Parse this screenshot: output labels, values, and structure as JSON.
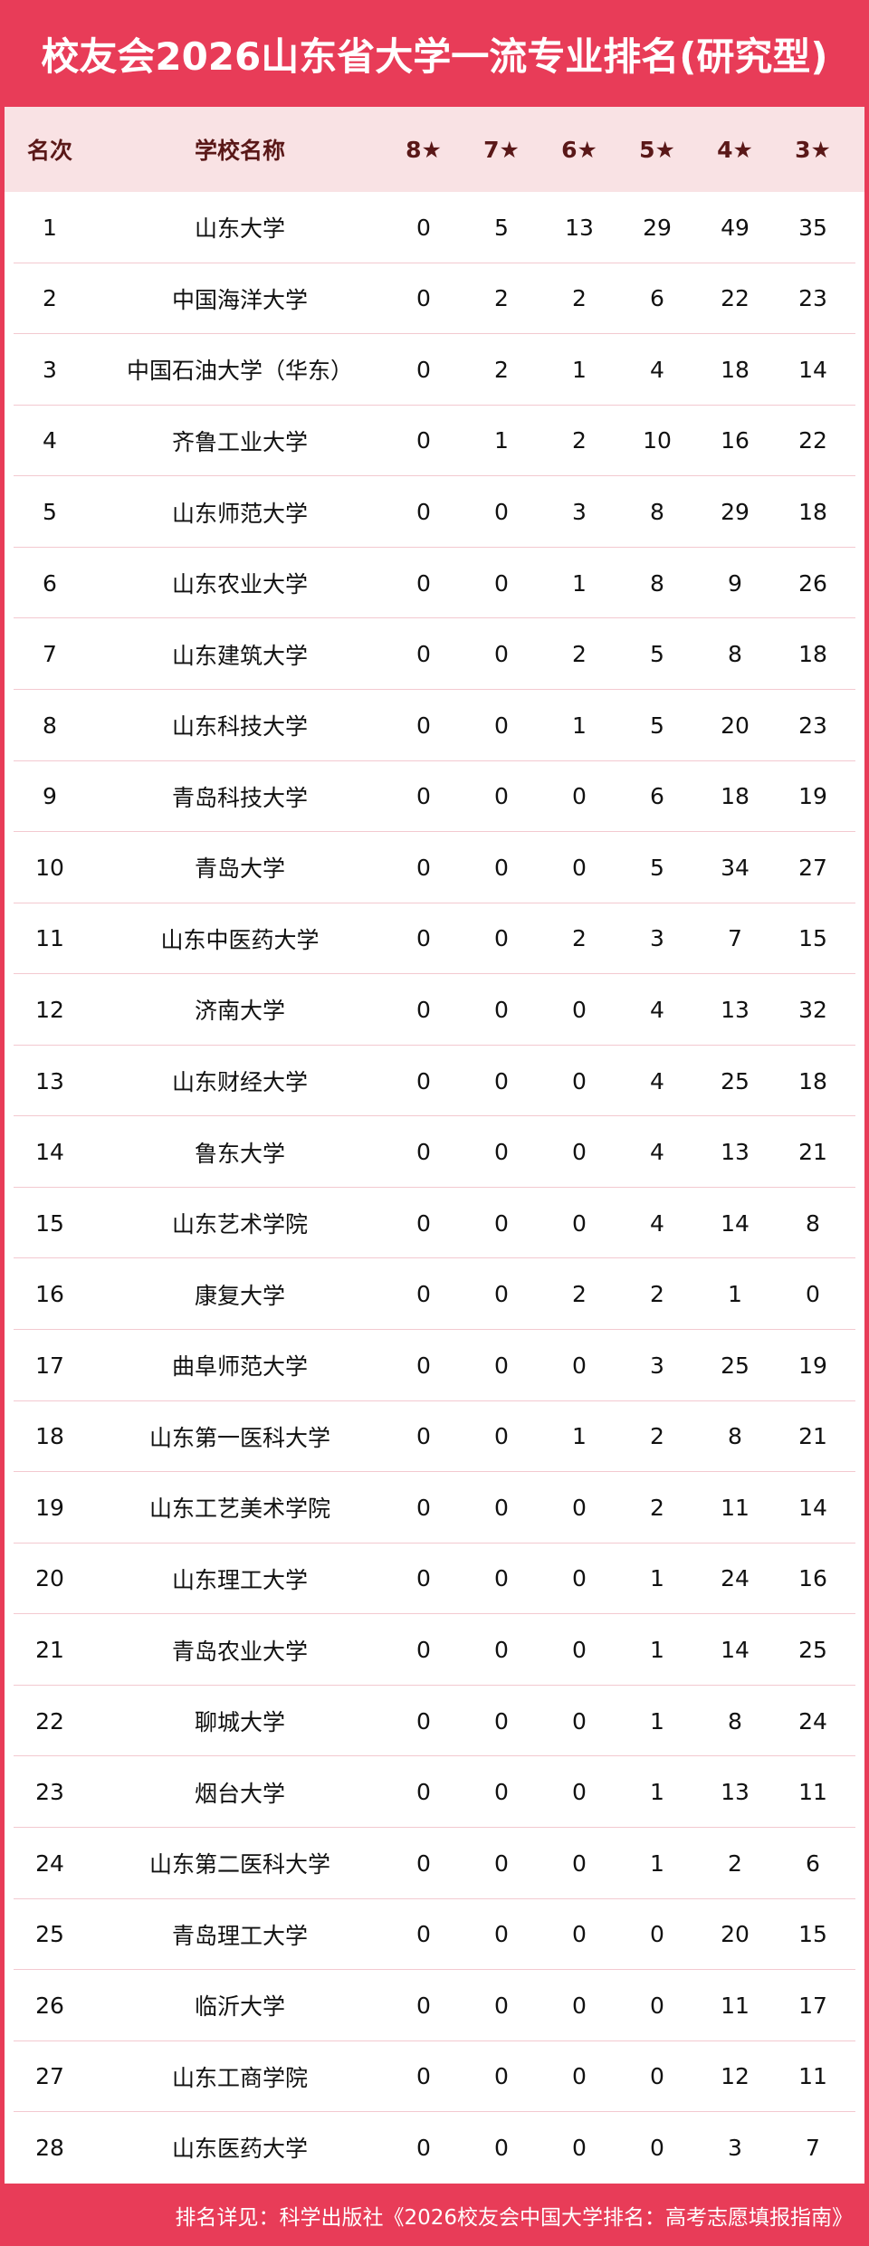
{
  "title": "校友会2026山东省大学一流专业排名(研究型)",
  "colors": {
    "accent": "#e83c58",
    "header_bg": "#f9e2e4",
    "header_text": "#5a1818"
  },
  "columns": [
    "名次",
    "学校名称",
    "8★",
    "7★",
    "6★",
    "5★",
    "4★",
    "3★"
  ],
  "rows": [
    [
      "1",
      "山东大学",
      "0",
      "5",
      "13",
      "29",
      "49",
      "35"
    ],
    [
      "2",
      "中国海洋大学",
      "0",
      "2",
      "2",
      "6",
      "22",
      "23"
    ],
    [
      "3",
      "中国石油大学（华东）",
      "0",
      "2",
      "1",
      "4",
      "18",
      "14"
    ],
    [
      "4",
      "齐鲁工业大学",
      "0",
      "1",
      "2",
      "10",
      "16",
      "22"
    ],
    [
      "5",
      "山东师范大学",
      "0",
      "0",
      "3",
      "8",
      "29",
      "18"
    ],
    [
      "6",
      "山东农业大学",
      "0",
      "0",
      "1",
      "8",
      "9",
      "26"
    ],
    [
      "7",
      "山东建筑大学",
      "0",
      "0",
      "2",
      "5",
      "8",
      "18"
    ],
    [
      "8",
      "山东科技大学",
      "0",
      "0",
      "1",
      "5",
      "20",
      "23"
    ],
    [
      "9",
      "青岛科技大学",
      "0",
      "0",
      "0",
      "6",
      "18",
      "19"
    ],
    [
      "10",
      "青岛大学",
      "0",
      "0",
      "0",
      "5",
      "34",
      "27"
    ],
    [
      "11",
      "山东中医药大学",
      "0",
      "0",
      "2",
      "3",
      "7",
      "15"
    ],
    [
      "12",
      "济南大学",
      "0",
      "0",
      "0",
      "4",
      "13",
      "32"
    ],
    [
      "13",
      "山东财经大学",
      "0",
      "0",
      "0",
      "4",
      "25",
      "18"
    ],
    [
      "14",
      "鲁东大学",
      "0",
      "0",
      "0",
      "4",
      "13",
      "21"
    ],
    [
      "15",
      "山东艺术学院",
      "0",
      "0",
      "0",
      "4",
      "14",
      "8"
    ],
    [
      "16",
      "康复大学",
      "0",
      "0",
      "2",
      "2",
      "1",
      "0"
    ],
    [
      "17",
      "曲阜师范大学",
      "0",
      "0",
      "0",
      "3",
      "25",
      "19"
    ],
    [
      "18",
      "山东第一医科大学",
      "0",
      "0",
      "1",
      "2",
      "8",
      "21"
    ],
    [
      "19",
      "山东工艺美术学院",
      "0",
      "0",
      "0",
      "2",
      "11",
      "14"
    ],
    [
      "20",
      "山东理工大学",
      "0",
      "0",
      "0",
      "1",
      "24",
      "16"
    ],
    [
      "21",
      "青岛农业大学",
      "0",
      "0",
      "0",
      "1",
      "14",
      "25"
    ],
    [
      "22",
      "聊城大学",
      "0",
      "0",
      "0",
      "1",
      "8",
      "24"
    ],
    [
      "23",
      "烟台大学",
      "0",
      "0",
      "0",
      "1",
      "13",
      "11"
    ],
    [
      "24",
      "山东第二医科大学",
      "0",
      "0",
      "0",
      "1",
      "2",
      "6"
    ],
    [
      "25",
      "青岛理工大学",
      "0",
      "0",
      "0",
      "0",
      "20",
      "15"
    ],
    [
      "26",
      "临沂大学",
      "0",
      "0",
      "0",
      "0",
      "11",
      "17"
    ],
    [
      "27",
      "山东工商学院",
      "0",
      "0",
      "0",
      "0",
      "12",
      "11"
    ],
    [
      "28",
      "山东医药大学",
      "0",
      "0",
      "0",
      "0",
      "3",
      "7"
    ]
  ],
  "footer": "排名详见：科学出版社《2026校友会中国大学排名：高考志愿填报指南》"
}
